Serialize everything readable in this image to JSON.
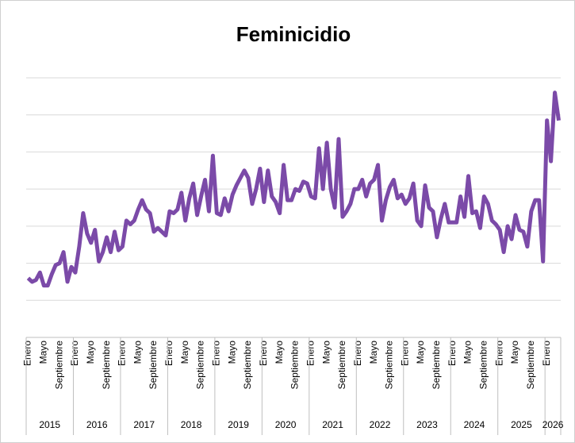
{
  "chart_data": {
    "type": "line",
    "title": "Feminicidio",
    "categories": [
      "Enero",
      null,
      null,
      null,
      "Mayo",
      null,
      null,
      null,
      "Septiembre",
      null,
      null,
      null,
      "Enero",
      null,
      null,
      null,
      "Mayo",
      null,
      null,
      null,
      "Septiembre",
      null,
      null,
      null,
      "Enero",
      null,
      null,
      null,
      "Mayo",
      null,
      null,
      null,
      "Septiembre",
      null,
      null,
      null,
      "Enero",
      null,
      null,
      null,
      "Mayo",
      null,
      null,
      null,
      "Septiembre",
      null,
      null,
      null,
      "Enero",
      null,
      null,
      null,
      "Mayo",
      null,
      null,
      null,
      "Septiembre",
      null,
      null,
      null,
      "Enero",
      null,
      null,
      null,
      "Mayo",
      null,
      null,
      null,
      "Septiembre",
      null,
      null,
      null,
      "Enero",
      null,
      null,
      null,
      "Mayo",
      null,
      null,
      null,
      "Septiembre",
      null,
      null,
      null,
      "Enero",
      null,
      null,
      null,
      "Mayo",
      null,
      null,
      null,
      "Septiembre",
      null,
      null,
      null,
      "Enero",
      null,
      null,
      null,
      "Mayo",
      null,
      null,
      null,
      "Septiembre",
      null,
      null,
      null,
      "Enero",
      null,
      null,
      null,
      "Mayo",
      null,
      null,
      null,
      "Septiembre",
      null,
      null,
      null,
      "Enero",
      null,
      null,
      null,
      "Mayo",
      null,
      null,
      null,
      "Septiembre",
      null,
      null,
      null,
      "Enero",
      null,
      null,
      null
    ],
    "years": [
      "2015",
      "2016",
      "2017",
      "2018",
      "2019",
      "2020",
      "2021",
      "2022",
      "2023",
      "2024",
      "2025",
      "2026"
    ],
    "series": [
      {
        "color": "#7b4aa8",
        "values": [
          32,
          30,
          31,
          35,
          28,
          28,
          34,
          39,
          40,
          46,
          30,
          38,
          35,
          49,
          67,
          56,
          51,
          58,
          41,
          46,
          54,
          46,
          57,
          47,
          49,
          63,
          61,
          63,
          69,
          74,
          69,
          67,
          57,
          59,
          57,
          55,
          68,
          67,
          69,
          78,
          63,
          75,
          83,
          66,
          76,
          85,
          68,
          98,
          67,
          66,
          75,
          68,
          77,
          82,
          86,
          90,
          86,
          72,
          80,
          91,
          73,
          90,
          76,
          73,
          67,
          93,
          74,
          74,
          80,
          79,
          84,
          83,
          76,
          75,
          102,
          80,
          105,
          80,
          70,
          107,
          65,
          68,
          72,
          80,
          80,
          85,
          76,
          83,
          85,
          93,
          63,
          74,
          81,
          85,
          75,
          77,
          72,
          75,
          83,
          63,
          60,
          82,
          70,
          68,
          54,
          64,
          72,
          62,
          62,
          62,
          76,
          65,
          87,
          67,
          68,
          59,
          76,
          72,
          63,
          61,
          58,
          46,
          60,
          53,
          66,
          58,
          57,
          49,
          68,
          74,
          74,
          41,
          117,
          95,
          132,
          117
        ]
      }
    ],
    "ylim": [
      0,
      140
    ],
    "yticks": [
      20,
      40,
      60,
      80,
      100,
      120,
      140
    ],
    "grid": true
  }
}
